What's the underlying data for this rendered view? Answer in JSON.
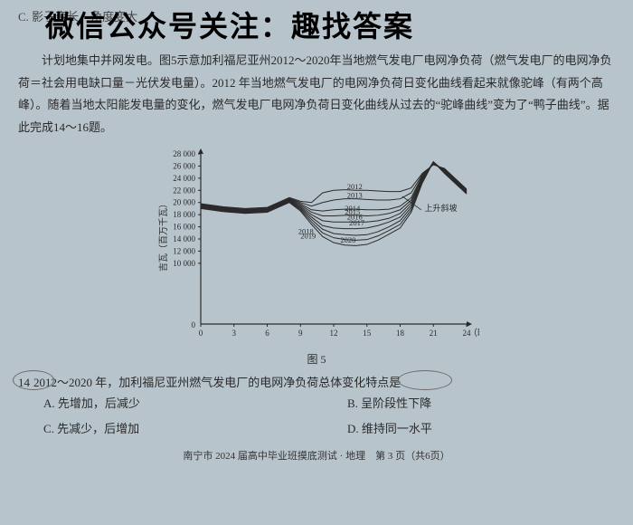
{
  "watermark": "微信公众号关注：趣找答案",
  "top_fragment": "C. 影子变长，角度变大",
  "paragraph": "计划地集中并网发电。图5示意加利福尼亚州2012～2020年当地燃气发电厂电网净负荷（燃气发电厂的电网净负荷＝社会用电缺口量－光伏发电量）。2012 年当地燃气发电厂的电网净负荷日变化曲线看起来就像驼峰（有两个高峰）。随着当地太阳能发电量的变化，燃气发电厂电网净负荷日变化曲线从过去的“驼峰曲线”变为了“鸭子曲线”。据此完成14～16题。",
  "chart": {
    "type": "line",
    "xlabel": "（时）",
    "ylabel": "吉瓦（百万千瓦）",
    "xlim": [
      0,
      24
    ],
    "xtick_step": 3,
    "ylim": [
      0,
      28000
    ],
    "ytick_start": 10000,
    "ytick_step": 2000,
    "axis_color": "#2a2a2a",
    "grid": false,
    "background_color": "#b8c4cc",
    "line_color": "#2a2a2a",
    "line_width": 1,
    "label_fontsize": 10,
    "tick_fontsize": 9,
    "annotation": "上升斜坡",
    "x": [
      0,
      2,
      4,
      6,
      7,
      8,
      9,
      10,
      11,
      12,
      13,
      14,
      15,
      16,
      17,
      18,
      19,
      20,
      21,
      22,
      24
    ],
    "series": {
      "2012": [
        19800,
        19300,
        19000,
        19200,
        20000,
        20800,
        20200,
        20000,
        21600,
        22000,
        22100,
        22000,
        22000,
        21900,
        21800,
        21800,
        22400,
        24800,
        26200,
        25600,
        22200
      ],
      "2013": [
        19700,
        19200,
        18900,
        19100,
        19900,
        20700,
        20000,
        19400,
        20000,
        20400,
        20600,
        20600,
        20500,
        20400,
        20400,
        20600,
        21600,
        24600,
        26300,
        25500,
        22100
      ],
      "2014": [
        19600,
        19100,
        18800,
        19000,
        19800,
        20600,
        19800,
        18800,
        18600,
        18800,
        18900,
        18900,
        18800,
        18800,
        18900,
        19400,
        20800,
        24400,
        26400,
        25400,
        22000
      ],
      "2015": [
        19500,
        19000,
        18700,
        18900,
        19700,
        20500,
        19600,
        18400,
        17800,
        17800,
        17900,
        17900,
        17800,
        17900,
        18200,
        18800,
        20400,
        24200,
        26500,
        25300,
        21900
      ],
      "2016": [
        19400,
        18900,
        18600,
        18800,
        19600,
        20400,
        19400,
        18000,
        17000,
        16800,
        16800,
        16800,
        16800,
        17000,
        17400,
        18200,
        20000,
        24000,
        26600,
        25200,
        21800
      ],
      "2017": [
        19300,
        18800,
        18500,
        18700,
        19500,
        20300,
        19200,
        17600,
        16200,
        15800,
        15700,
        15700,
        15800,
        16200,
        16800,
        17600,
        19600,
        23800,
        26700,
        25100,
        21700
      ],
      "2018": [
        19200,
        18700,
        18400,
        18600,
        19400,
        20200,
        19000,
        17200,
        15600,
        14900,
        14700,
        14600,
        14700,
        15200,
        16000,
        17000,
        19200,
        23600,
        26700,
        25000,
        21600
      ],
      "2019": [
        19100,
        18600,
        18300,
        18500,
        19300,
        20100,
        18800,
        16800,
        15000,
        14200,
        13900,
        13800,
        13900,
        14500,
        15400,
        16400,
        18800,
        23400,
        26700,
        24900,
        21500
      ],
      "2020": [
        19000,
        18500,
        18200,
        18400,
        19200,
        20000,
        18600,
        16400,
        14400,
        13400,
        13000,
        12900,
        13100,
        13800,
        14800,
        15800,
        18400,
        23200,
        26700,
        24800,
        21400
      ]
    },
    "year_label_positions": {
      "2012": [
        13.2,
        22200
      ],
      "2013": [
        13.2,
        20800
      ],
      "2014": [
        13.0,
        18600
      ],
      "2015": [
        13.0,
        18000
      ],
      "2016": [
        13.2,
        17200
      ],
      "2017": [
        13.4,
        16200
      ],
      "2018": [
        8.8,
        14800
      ],
      "2019": [
        9.0,
        14100
      ],
      "2020": [
        12.6,
        13400
      ]
    }
  },
  "figure_caption": "图 5",
  "question": {
    "number": "14",
    "stem_a": "2012～2020 年，加利福尼亚州燃气发电厂的电网净负荷总体变化特点是",
    "options": {
      "A": "A. 先增加，后减少",
      "B": "B. 呈阶段性下降",
      "C": "C. 先减少，后增加",
      "D": "D. 维持同一水平"
    }
  },
  "footer": "南宁市 2024 届高中毕业班摸底测试 · 地理　第 3 页（共6页）"
}
